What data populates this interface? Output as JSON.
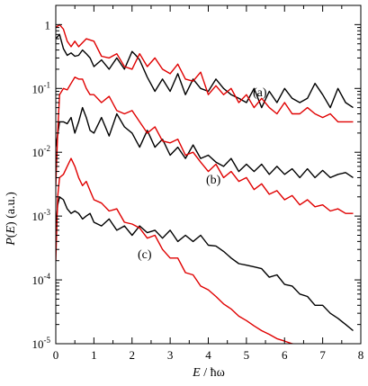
{
  "chart_data": {
    "type": "line",
    "xlabel_italic": "E",
    "xlabel_rest": " / ħω",
    "ylabel_italic_P": "P",
    "ylabel_paren_open": "(",
    "ylabel_italic_E": "E",
    "ylabel_rest": ") (a.u.)",
    "xlim": [
      0,
      8
    ],
    "ylim": [
      1e-05,
      2
    ],
    "yscale": "log",
    "x_ticks": [
      "0",
      "1",
      "2",
      "3",
      "4",
      "5",
      "6",
      "7",
      "8"
    ],
    "y_ticks": [
      {
        "base": "1",
        "exp": ""
      },
      {
        "base": "10",
        "exp": "-1"
      },
      {
        "base": "10",
        "exp": "-2"
      },
      {
        "base": "10",
        "exp": "-3"
      },
      {
        "base": "10",
        "exp": "-4"
      },
      {
        "base": "10",
        "exp": "-5"
      }
    ],
    "annotations": [
      "(a)",
      "(b)",
      "(c)"
    ],
    "colors": {
      "black": "#000000",
      "red": "#e00000"
    },
    "series": [
      {
        "group": "(a)",
        "color": "black",
        "x": [
          0.0,
          0.1,
          0.2,
          0.3,
          0.4,
          0.5,
          0.6,
          0.7,
          0.8,
          0.9,
          1.0,
          1.2,
          1.4,
          1.6,
          1.8,
          2.0,
          2.1,
          2.2,
          2.4,
          2.6,
          2.8,
          3.0,
          3.2,
          3.4,
          3.6,
          3.8,
          4.0,
          4.2,
          4.4,
          4.6,
          4.8,
          5.0,
          5.2,
          5.4,
          5.6,
          5.8,
          6.0,
          6.2,
          6.4,
          6.6,
          6.8,
          7.0,
          7.2,
          7.4,
          7.6,
          7.8
        ],
        "y": [
          0.6,
          0.7,
          0.42,
          0.33,
          0.36,
          0.32,
          0.33,
          0.4,
          0.35,
          0.3,
          0.22,
          0.28,
          0.2,
          0.3,
          0.2,
          0.38,
          0.33,
          0.28,
          0.15,
          0.09,
          0.14,
          0.09,
          0.17,
          0.08,
          0.14,
          0.1,
          0.09,
          0.14,
          0.1,
          0.08,
          0.07,
          0.06,
          0.1,
          0.05,
          0.09,
          0.06,
          0.1,
          0.07,
          0.06,
          0.07,
          0.12,
          0.08,
          0.05,
          0.1,
          0.06,
          0.05
        ]
      },
      {
        "group": "(a)",
        "color": "red",
        "x": [
          0.0,
          0.1,
          0.2,
          0.3,
          0.4,
          0.5,
          0.6,
          0.8,
          1.0,
          1.2,
          1.4,
          1.6,
          1.8,
          2.0,
          2.2,
          2.4,
          2.6,
          2.8,
          3.0,
          3.2,
          3.4,
          3.6,
          3.8,
          4.0,
          4.2,
          4.4,
          4.6,
          4.8,
          5.0,
          5.2,
          5.4,
          5.6,
          5.8,
          6.0,
          6.2,
          6.4,
          6.6,
          6.8,
          7.0,
          7.2,
          7.4,
          7.6,
          7.8
        ],
        "y": [
          0.9,
          1.0,
          0.85,
          0.55,
          0.45,
          0.55,
          0.45,
          0.6,
          0.55,
          0.32,
          0.3,
          0.35,
          0.22,
          0.2,
          0.35,
          0.22,
          0.3,
          0.2,
          0.17,
          0.24,
          0.14,
          0.13,
          0.18,
          0.08,
          0.11,
          0.08,
          0.1,
          0.06,
          0.08,
          0.05,
          0.07,
          0.05,
          0.04,
          0.06,
          0.04,
          0.04,
          0.05,
          0.04,
          0.035,
          0.04,
          0.03,
          0.03,
          0.03
        ]
      },
      {
        "group": "(b)",
        "color": "black",
        "x": [
          0.0,
          0.1,
          0.2,
          0.3,
          0.4,
          0.5,
          0.6,
          0.7,
          0.8,
          0.9,
          1.0,
          1.2,
          1.4,
          1.6,
          1.8,
          2.0,
          2.2,
          2.4,
          2.6,
          2.8,
          3.0,
          3.2,
          3.4,
          3.6,
          3.8,
          4.0,
          4.2,
          4.4,
          4.6,
          4.8,
          5.0,
          5.2,
          5.4,
          5.6,
          5.8,
          6.0,
          6.2,
          6.4,
          6.6,
          6.8,
          7.0,
          7.2,
          7.4,
          7.6,
          7.8
        ],
        "y": [
          0.012,
          0.03,
          0.03,
          0.028,
          0.035,
          0.02,
          0.03,
          0.05,
          0.035,
          0.022,
          0.02,
          0.035,
          0.018,
          0.04,
          0.025,
          0.02,
          0.012,
          0.022,
          0.012,
          0.016,
          0.009,
          0.012,
          0.008,
          0.013,
          0.008,
          0.009,
          0.007,
          0.006,
          0.008,
          0.005,
          0.0065,
          0.005,
          0.0065,
          0.0045,
          0.006,
          0.0045,
          0.0055,
          0.004,
          0.0055,
          0.004,
          0.0052,
          0.004,
          0.0045,
          0.0048,
          0.004
        ]
      },
      {
        "group": "(b)",
        "color": "red",
        "x": [
          0.0,
          0.05,
          0.1,
          0.2,
          0.3,
          0.4,
          0.5,
          0.6,
          0.7,
          0.8,
          0.9,
          1.0,
          1.2,
          1.4,
          1.6,
          1.8,
          2.0,
          2.2,
          2.4,
          2.6,
          2.8,
          3.0,
          3.2,
          3.4,
          3.6,
          3.8,
          4.0,
          4.2,
          4.4,
          4.6,
          4.8,
          5.0,
          5.2,
          5.4,
          5.6,
          5.8,
          6.0,
          6.2,
          6.4,
          6.6,
          6.8,
          7.0,
          7.2,
          7.4,
          7.6,
          7.8
        ],
        "y": [
          0.003,
          0.02,
          0.08,
          0.1,
          0.095,
          0.12,
          0.15,
          0.14,
          0.14,
          0.1,
          0.08,
          0.08,
          0.06,
          0.075,
          0.045,
          0.04,
          0.045,
          0.03,
          0.02,
          0.025,
          0.015,
          0.014,
          0.016,
          0.009,
          0.01,
          0.007,
          0.005,
          0.0065,
          0.004,
          0.005,
          0.0035,
          0.004,
          0.0026,
          0.0032,
          0.0022,
          0.0025,
          0.0018,
          0.0021,
          0.0015,
          0.0018,
          0.0014,
          0.0015,
          0.0012,
          0.0013,
          0.0011,
          0.0011
        ]
      },
      {
        "group": "(c)",
        "color": "black",
        "x": [
          0.0,
          0.05,
          0.1,
          0.2,
          0.3,
          0.4,
          0.5,
          0.6,
          0.7,
          0.8,
          0.9,
          1.0,
          1.2,
          1.4,
          1.6,
          1.8,
          2.0,
          2.2,
          2.4,
          2.6,
          2.8,
          3.0,
          3.2,
          3.4,
          3.6,
          3.8,
          4.0,
          4.2,
          4.4,
          4.6,
          4.8,
          5.0,
          5.2,
          5.4,
          5.6,
          5.8,
          6.0,
          6.2,
          6.4,
          6.6,
          6.8,
          7.0,
          7.2,
          7.4,
          7.6,
          7.8
        ],
        "y": [
          0.0006,
          0.0015,
          0.002,
          0.0018,
          0.0013,
          0.0011,
          0.0012,
          0.0011,
          0.0009,
          0.001,
          0.0011,
          0.0008,
          0.0007,
          0.0009,
          0.0006,
          0.0007,
          0.0005,
          0.0007,
          0.00055,
          0.0006,
          0.00045,
          0.0006,
          0.0004,
          0.0005,
          0.0004,
          0.0005,
          0.00035,
          0.00034,
          0.00028,
          0.00022,
          0.00018,
          0.00017,
          0.00016,
          0.00015,
          0.00011,
          0.00012,
          8.5e-05,
          8e-05,
          6e-05,
          5.5e-05,
          4e-05,
          4e-05,
          3e-05,
          2.5e-05,
          2e-05,
          1.6e-05
        ]
      },
      {
        "group": "(c)",
        "color": "red",
        "x": [
          0.0,
          0.05,
          0.1,
          0.2,
          0.3,
          0.4,
          0.5,
          0.6,
          0.7,
          0.8,
          0.9,
          1.0,
          1.2,
          1.4,
          1.6,
          1.8,
          2.0,
          2.2,
          2.4,
          2.6,
          2.8,
          3.0,
          3.2,
          3.4,
          3.6,
          3.8,
          4.0,
          4.2,
          4.4,
          4.6,
          4.8,
          5.0,
          5.2,
          5.4,
          5.6,
          5.8,
          6.0,
          6.2,
          6.4
        ],
        "y": [
          0.0002,
          0.002,
          0.004,
          0.0045,
          0.006,
          0.008,
          0.006,
          0.004,
          0.003,
          0.0035,
          0.0025,
          0.0018,
          0.0016,
          0.0012,
          0.0013,
          0.0008,
          0.00075,
          0.00065,
          0.00045,
          0.0005,
          0.0003,
          0.00022,
          0.00022,
          0.00013,
          0.00012,
          8e-05,
          7e-05,
          5.5e-05,
          4.2e-05,
          3.5e-05,
          2.7e-05,
          2.3e-05,
          1.9e-05,
          1.6e-05,
          1.4e-05,
          1.2e-05,
          1.1e-05,
          1e-05,
          9.5e-06
        ]
      }
    ]
  }
}
